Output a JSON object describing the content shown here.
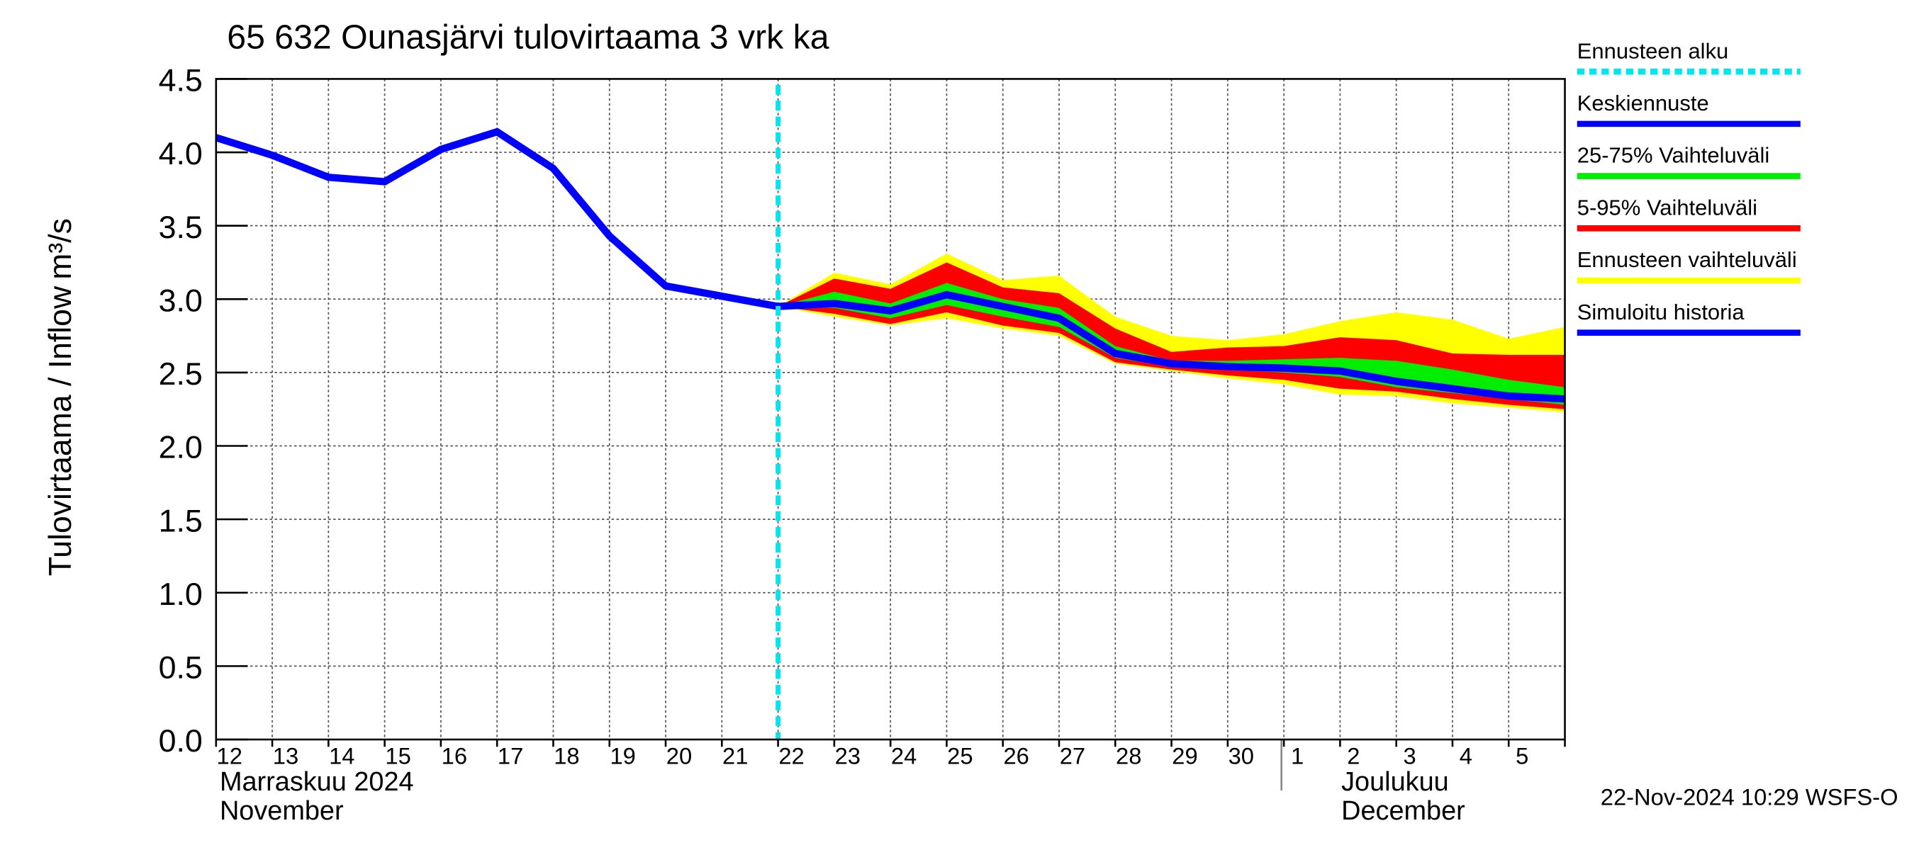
{
  "chart_data": {
    "type": "band-line",
    "title": "65 632 Ounasjärvi tulovirtaama 3 vrk ka",
    "y_label": "Tulovirtaama / Inflow",
    "y_unit": "m³/s",
    "timestamp": "22-Nov-2024 10:29 WSFS-O",
    "categories": [
      "12",
      "13",
      "14",
      "15",
      "16",
      "17",
      "18",
      "19",
      "20",
      "21",
      "22",
      "23",
      "24",
      "25",
      "26",
      "27",
      "28",
      "29",
      "30",
      "1",
      "2",
      "3",
      "4",
      "5",
      null
    ],
    "months": [
      {
        "start": "12",
        "label": [
          "Marraskuu 2024",
          "November"
        ]
      },
      {
        "start": "1",
        "label": [
          "Joulukuu",
          "December"
        ]
      }
    ],
    "ylim": [
      0,
      4.5
    ],
    "yticks": [
      {
        "value": 0,
        "label": "0.0"
      },
      {
        "value": 0.5,
        "label": "0.5"
      },
      {
        "value": 1,
        "label": "1.0"
      },
      {
        "value": 1.5,
        "label": "1.5"
      },
      {
        "value": 2,
        "label": "2.0"
      },
      {
        "value": 2.5,
        "label": "2.5"
      },
      {
        "value": 3,
        "label": "3.0"
      },
      {
        "value": 3.5,
        "label": "3.5"
      },
      {
        "value": 4,
        "label": "4.0"
      },
      {
        "value": 4.5,
        "label": "4.5"
      }
    ],
    "grid": true,
    "forecast_start": {
      "name": "Ennusteen alku",
      "color": "#00e5ee",
      "x": "22"
    },
    "series": [
      {
        "name": "Keskiennuste",
        "color": "#0000ff",
        "values": [
          null,
          null,
          null,
          null,
          null,
          null,
          null,
          null,
          null,
          null,
          2.95,
          2.97,
          2.92,
          3.03,
          2.95,
          2.87,
          2.63,
          2.56,
          2.54,
          2.53,
          2.51,
          2.44,
          2.39,
          2.34,
          2.32
        ]
      },
      {
        "name": "Simuloitu historia",
        "color": "#0000ff",
        "values": [
          4.1,
          3.98,
          3.83,
          3.8,
          4.02,
          4.14,
          3.89,
          3.43,
          3.09,
          3.02,
          2.95,
          null,
          null,
          null,
          null,
          null,
          null,
          null,
          null,
          null,
          null,
          null,
          null,
          null,
          null
        ]
      }
    ],
    "bands": [
      {
        "name": "25-75% Vaihteluväli",
        "color": "#00ee00",
        "low": [
          null,
          null,
          null,
          null,
          null,
          null,
          null,
          null,
          null,
          null,
          2.95,
          2.94,
          2.87,
          2.96,
          2.88,
          2.81,
          2.6,
          2.54,
          2.52,
          2.5,
          2.47,
          2.4,
          2.36,
          2.32,
          2.28
        ],
        "high": [
          null,
          null,
          null,
          null,
          null,
          null,
          null,
          null,
          null,
          null,
          2.95,
          3.05,
          2.97,
          3.11,
          3.0,
          2.94,
          2.68,
          2.58,
          2.58,
          2.59,
          2.6,
          2.58,
          2.52,
          2.45,
          2.4
        ]
      },
      {
        "name": "5-95% Vaihteluväli",
        "color": "#ff0000",
        "low": [
          null,
          null,
          null,
          null,
          null,
          null,
          null,
          null,
          null,
          null,
          2.95,
          2.9,
          2.83,
          2.91,
          2.82,
          2.77,
          2.57,
          2.52,
          2.48,
          2.45,
          2.39,
          2.37,
          2.32,
          2.28,
          2.25
        ],
        "high": [
          null,
          null,
          null,
          null,
          null,
          null,
          null,
          null,
          null,
          null,
          2.95,
          3.14,
          3.07,
          3.25,
          3.08,
          3.04,
          2.8,
          2.64,
          2.67,
          2.68,
          2.74,
          2.72,
          2.63,
          2.62,
          2.62
        ]
      },
      {
        "name": "Ennusteen vaihteluväli",
        "color": "#ffff00",
        "low": [
          null,
          null,
          null,
          null,
          null,
          null,
          null,
          null,
          null,
          null,
          2.95,
          2.88,
          2.82,
          2.87,
          2.8,
          2.75,
          2.56,
          2.51,
          2.46,
          2.42,
          2.35,
          2.34,
          2.29,
          2.26,
          2.23
        ],
        "high": [
          null,
          null,
          null,
          null,
          null,
          null,
          null,
          null,
          null,
          null,
          2.95,
          3.18,
          3.1,
          3.31,
          3.13,
          3.16,
          2.88,
          2.75,
          2.72,
          2.76,
          2.85,
          2.91,
          2.86,
          2.73,
          2.81
        ]
      }
    ]
  }
}
